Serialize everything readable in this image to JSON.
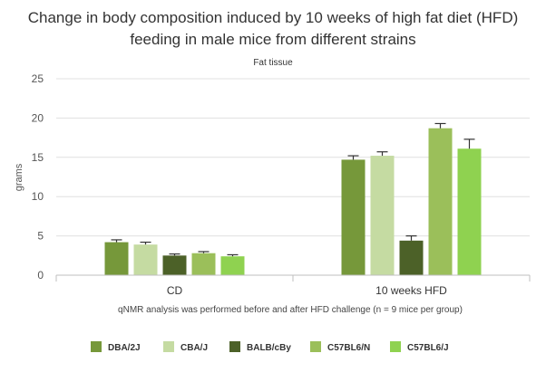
{
  "chart_data": {
    "type": "bar",
    "title_line1": "Change in body composition induced by 10 weeks of high fat diet (HFD)",
    "title_line2": "feeding in male mice from different strains",
    "subtitle": "Fat tissue",
    "ylabel": "grams",
    "xlabel": "qNMR analysis was performed before and after HFD challenge (n = 9 mice per group)",
    "ylim": [
      0,
      25
    ],
    "yticks": [
      "0",
      "5",
      "10",
      "15",
      "20",
      "25"
    ],
    "grid": true,
    "legend_position": "bottom",
    "categories": [
      "CD",
      "10 weeks HFD"
    ],
    "series": [
      {
        "name": "DBA/2J",
        "color": "#76983a",
        "values": [
          4.2,
          14.7
        ],
        "errors": [
          0.3,
          0.5
        ]
      },
      {
        "name": "CBA/J",
        "color": "#c5dba2",
        "values": [
          3.9,
          15.2
        ],
        "errors": [
          0.3,
          0.5
        ]
      },
      {
        "name": "BALB/cBy",
        "color": "#4c6128",
        "values": [
          2.5,
          4.4
        ],
        "errors": [
          0.2,
          0.6
        ]
      },
      {
        "name": "C57BL6/N",
        "color": "#9bbf5a",
        "values": [
          2.8,
          18.7
        ],
        "errors": [
          0.2,
          0.6
        ]
      },
      {
        "name": "C57BL6/J",
        "color": "#8fd250",
        "values": [
          2.4,
          16.1
        ],
        "errors": [
          0.2,
          1.2
        ]
      }
    ]
  }
}
